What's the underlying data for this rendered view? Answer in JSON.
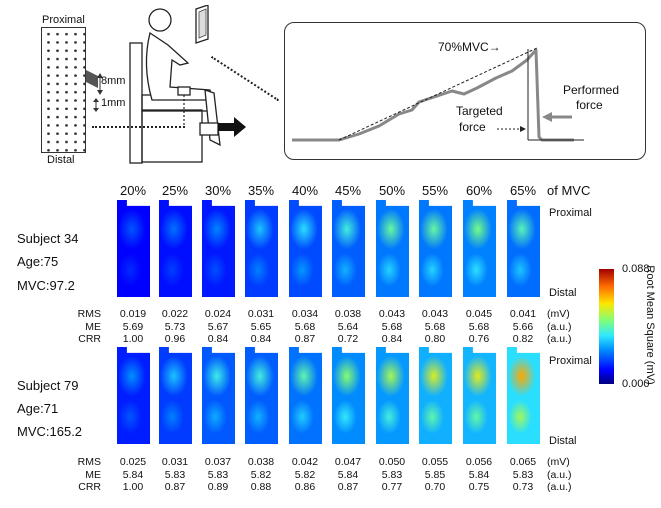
{
  "diagram": {
    "grid_top_label": "Proximal",
    "grid_bottom_label": "Distal",
    "spacing_a": "8mm",
    "spacing_b": "1mm"
  },
  "force_plot": {
    "mvc_label": "70%MVC→",
    "performed_label_line1": "Performed",
    "performed_label_line2": "force",
    "targeted_label_line1": "Targeted",
    "targeted_label_line2": "force"
  },
  "header": {
    "percentages": [
      "20%",
      "25%",
      "30%",
      "35%",
      "40%",
      "45%",
      "50%",
      "55%",
      "60%",
      "65%"
    ],
    "suffix": "of MVC"
  },
  "orientation": {
    "proximal": "Proximal",
    "distal": "Distal"
  },
  "colorbar": {
    "max": "0.088",
    "min": "0.000",
    "title": "Root Mean Square (mV)"
  },
  "metric_names": [
    "RMS",
    "ME",
    "CRR"
  ],
  "units": [
    "(mV)",
    "(a.u.)",
    "(a.u.)"
  ],
  "subjects": [
    {
      "name": "Subject 34",
      "age": "Age:75",
      "mvc": "MVC:97.2",
      "rms": [
        "0.019",
        "0.022",
        "0.024",
        "0.031",
        "0.034",
        "0.038",
        "0.043",
        "0.043",
        "0.045",
        "0.041"
      ],
      "me": [
        "5.69",
        "5.73",
        "5.67",
        "5.65",
        "5.68",
        "5.64",
        "5.68",
        "5.68",
        "5.68",
        "5.66"
      ],
      "crr": [
        "1.00",
        "0.96",
        "0.84",
        "0.84",
        "0.87",
        "0.72",
        "0.84",
        "0.80",
        "0.76",
        "0.82"
      ]
    },
    {
      "name": "Subject 79",
      "age": "Age:71",
      "mvc": "MVC:165.2",
      "rms": [
        "0.025",
        "0.031",
        "0.037",
        "0.038",
        "0.042",
        "0.047",
        "0.050",
        "0.055",
        "0.056",
        "0.065"
      ],
      "me": [
        "5.84",
        "5.83",
        "5.83",
        "5.82",
        "5.82",
        "5.84",
        "5.83",
        "5.85",
        "5.84",
        "5.83"
      ],
      "crr": [
        "1.00",
        "0.87",
        "0.89",
        "0.88",
        "0.86",
        "0.87",
        "0.77",
        "0.70",
        "0.75",
        "0.73"
      ]
    }
  ]
}
